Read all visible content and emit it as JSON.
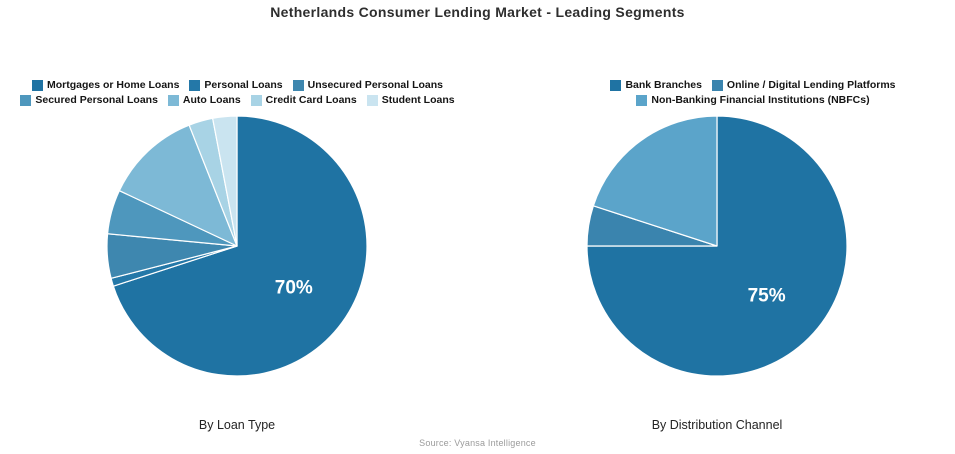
{
  "page_title": "Netherlands Consumer Lending Market - Leading Segments",
  "source_note": "Source: Vyansa Intelligence",
  "chart_data": [
    {
      "type": "pie",
      "title": "By Loan Type",
      "direction": "clockwise",
      "start_angle_deg": 0,
      "legend_position": "top",
      "labels": [
        "Mortgages or Home Loans",
        "Personal Loans",
        "Unsecured Personal Loans",
        "Secured Personal Loans",
        "Auto Loans",
        "Credit Card Loans",
        "Student Loans"
      ],
      "values": [
        70,
        1,
        5.5,
        5.5,
        12,
        3,
        3
      ],
      "colors": [
        "#1f73a3",
        "#2478a8",
        "#3e87af",
        "#4e97bd",
        "#7db9d6",
        "#a8d3e5",
        "#cae4f0"
      ],
      "value_label": "70%",
      "value_label_color": "#ffffff",
      "legend_rows": [
        [
          0,
          1,
          2
        ],
        [
          3,
          4,
          5,
          6
        ]
      ]
    },
    {
      "type": "pie",
      "title": "By Distribution Channel",
      "direction": "clockwise",
      "start_angle_deg": 0,
      "legend_position": "top",
      "labels": [
        "Bank Branches",
        "Online / Digital Lending Platforms",
        "Non-Banking Financial Institutions (NBFCs)"
      ],
      "values": [
        75,
        5,
        20
      ],
      "colors": [
        "#1f73a3",
        "#3a84ae",
        "#5ba4ca"
      ],
      "value_label": "75%",
      "value_label_color": "#ffffff",
      "legend_rows": [
        [
          0,
          1
        ],
        [
          2
        ]
      ]
    }
  ]
}
